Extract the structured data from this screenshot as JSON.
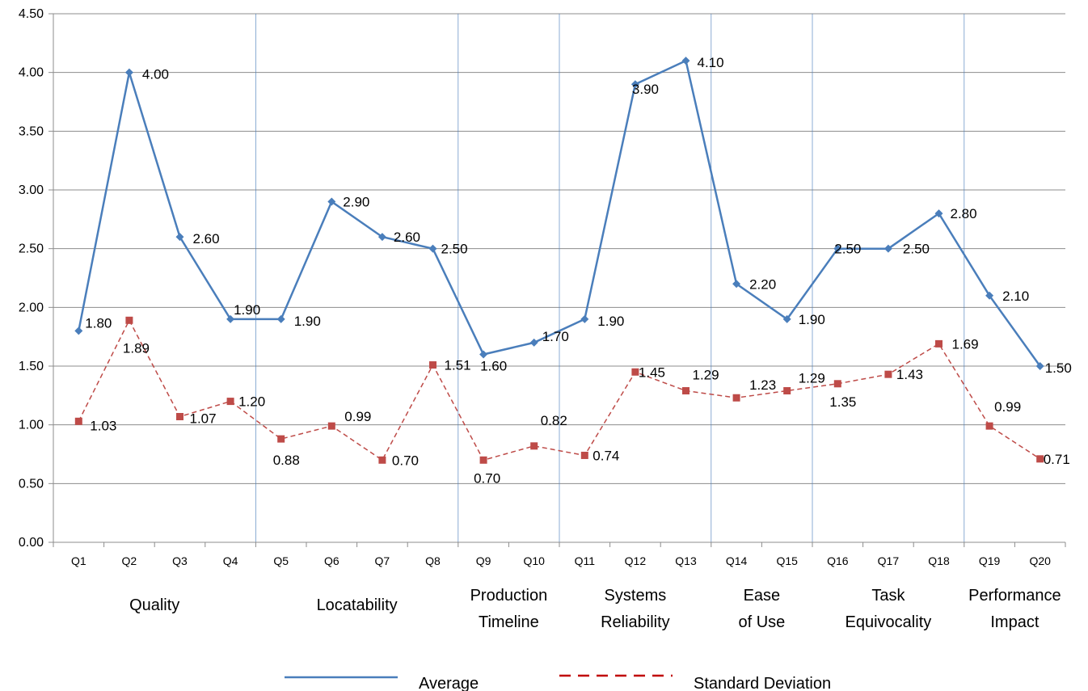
{
  "chart_data": {
    "type": "line",
    "categories": [
      "Q1",
      "Q2",
      "Q3",
      "Q4",
      "Q5",
      "Q6",
      "Q7",
      "Q8",
      "Q9",
      "Q10",
      "Q11",
      "Q12",
      "Q13",
      "Q14",
      "Q15",
      "Q16",
      "Q17",
      "Q18",
      "Q19",
      "Q20"
    ],
    "series": [
      {
        "name": "Average",
        "color": "#4a7ebb",
        "line_style": "solid",
        "marker": "diamond",
        "values": [
          1.8,
          4.0,
          2.6,
          1.9,
          1.9,
          2.9,
          2.6,
          2.5,
          1.6,
          1.7,
          1.9,
          3.9,
          4.1,
          2.2,
          1.9,
          2.5,
          2.5,
          2.8,
          2.1,
          1.5
        ],
        "labels": [
          "1.80",
          "4.00",
          "2.60",
          "1.90",
          "1.90",
          "2.90",
          "2.60",
          "2.50",
          "1.60",
          "1.70",
          "1.90",
          "3.90",
          "4.10",
          "2.20",
          "1.90",
          "2.50",
          "2.50",
          "2.80",
          "2.10",
          "1.50"
        ]
      },
      {
        "name": "Standard Deviation",
        "color": "#be4b48",
        "line_style": "dashed",
        "marker": "square",
        "values": [
          1.03,
          1.89,
          1.07,
          1.2,
          0.88,
          0.99,
          0.7,
          1.51,
          0.7,
          0.82,
          0.74,
          1.45,
          1.29,
          1.23,
          1.29,
          1.35,
          1.43,
          1.69,
          0.99,
          0.71
        ],
        "labels": [
          "1.03",
          "1.89",
          "1.07",
          "1.20",
          "0.88",
          "0.99",
          "0.70",
          "1.51",
          "0.70",
          "0.82",
          "0.74",
          "1.45",
          "1.29",
          "1.23",
          "1.29",
          "1.35",
          "1.43",
          "1.69",
          "0.99",
          "0.71"
        ]
      }
    ],
    "ylim": [
      0,
      4.5
    ],
    "yticks": [
      "0.00",
      "0.50",
      "1.00",
      "1.50",
      "2.00",
      "2.50",
      "3.00",
      "3.50",
      "4.00",
      "4.50"
    ],
    "grid": true,
    "groups": [
      {
        "lines": [
          "Quality"
        ],
        "from": "Q1",
        "to": "Q4"
      },
      {
        "lines": [
          "Locatability"
        ],
        "from": "Q5",
        "to": "Q8"
      },
      {
        "lines": [
          "Production",
          "Timeline"
        ],
        "from": "Q9",
        "to": "Q10"
      },
      {
        "lines": [
          "Systems",
          "Reliability"
        ],
        "from": "Q11",
        "to": "Q13"
      },
      {
        "lines": [
          "Ease",
          "of Use"
        ],
        "from": "Q14",
        "to": "Q15"
      },
      {
        "lines": [
          "Task",
          "Equivocality"
        ],
        "from": "Q16",
        "to": "Q18"
      },
      {
        "lines": [
          "Performance",
          "Impact"
        ],
        "from": "Q19",
        "to": "Q20"
      }
    ],
    "legend_position": "bottom"
  }
}
